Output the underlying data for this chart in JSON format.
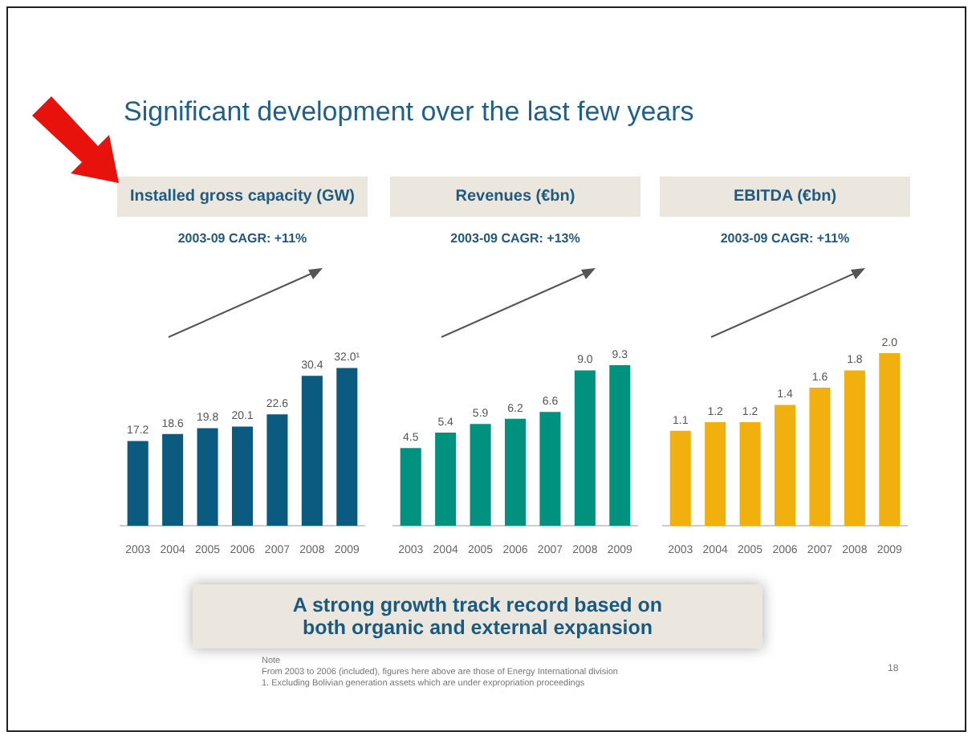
{
  "chart_data": [
    {
      "type": "bar",
      "title": "Installed gross capacity (GW)",
      "subtitle": "2003-09 CAGR: +11%",
      "categories": [
        "2003",
        "2004",
        "2005",
        "2006",
        "2007",
        "2008",
        "2009"
      ],
      "values": [
        17.2,
        18.6,
        19.8,
        20.1,
        22.6,
        30.4,
        32.0
      ],
      "color": "#0b5a7f",
      "value_labels": [
        "17.2",
        "18.6",
        "19.8",
        "20.1",
        "22.6",
        "30.4",
        "32.0¹"
      ]
    },
    {
      "type": "bar",
      "title": "Revenues (€bn)",
      "subtitle": "2003-09 CAGR: +13%",
      "categories": [
        "2003",
        "2004",
        "2005",
        "2006",
        "2007",
        "2008",
        "2009"
      ],
      "values": [
        4.5,
        5.4,
        5.9,
        6.2,
        6.6,
        9.0,
        9.3
      ],
      "color": "#00917f",
      "value_labels": [
        "4.5",
        "5.4",
        "5.9",
        "6.2",
        "6.6",
        "9.0",
        "9.3"
      ]
    },
    {
      "type": "bar",
      "title": "EBITDA (€bn)",
      "subtitle": "2003-09 CAGR: +11%",
      "categories": [
        "2003",
        "2004",
        "2005",
        "2006",
        "2007",
        "2008",
        "2009"
      ],
      "values": [
        1.1,
        1.2,
        1.2,
        1.4,
        1.6,
        1.8,
        2.0
      ],
      "color": "#f2b00e",
      "value_labels": [
        "1.1",
        "1.2",
        "1.2",
        "1.4",
        "1.6",
        "1.8",
        "2.0"
      ]
    },
    {
      "type": "other",
      "title": "Significant development over the last few years",
      "annotations": [
        "A strong growth track record based on both organic and external expansion",
        "Note",
        "From 2003 to 2006 (included), figures here above are those of Energy International division",
        "1. Excluding Bolivian generation assets which are under expropriation proceedings",
        "18"
      ]
    }
  ]
}
